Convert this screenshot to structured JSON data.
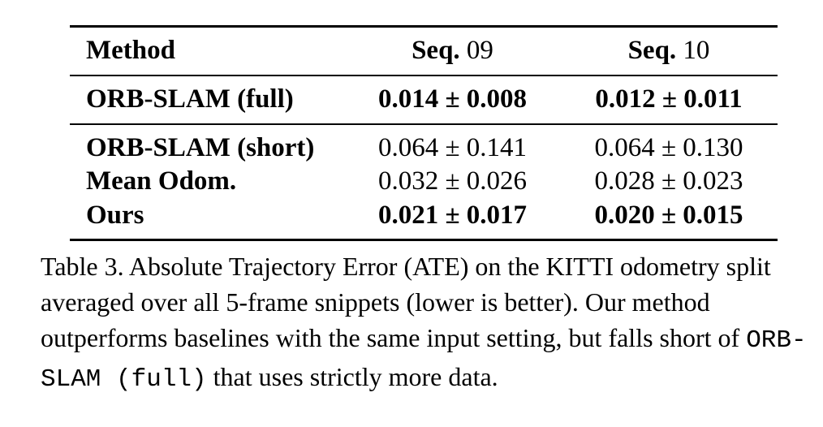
{
  "table": {
    "header": {
      "method": "Method",
      "seq09_bold": "Seq.",
      "seq09_num": "09",
      "seq10_bold": "Seq.",
      "seq10_num": "10"
    },
    "rows": [
      {
        "method": "ORB-SLAM (full)",
        "seq09": "0.014 ± 0.008",
        "seq10": "0.012 ± 0.011"
      },
      {
        "method": "ORB-SLAM (short)",
        "seq09": "0.064 ± 0.141",
        "seq10": "0.064 ± 0.130"
      },
      {
        "method": "Mean Odom.",
        "seq09": "0.032 ± 0.026",
        "seq10": "0.028 ± 0.023"
      },
      {
        "method": "Ours",
        "seq09": "0.021 ± 0.017",
        "seq10": "0.020 ± 0.015"
      }
    ]
  },
  "caption": {
    "text_before": "Table 3. Absolute Trajectory Error (ATE) on the KITTI odometry split averaged over all 5-frame snippets (lower is better). Our method outperforms baselines with the same input setting, but falls short of",
    "mono": "ORB-SLAM (full)",
    "text_after": "that uses strictly more data."
  }
}
